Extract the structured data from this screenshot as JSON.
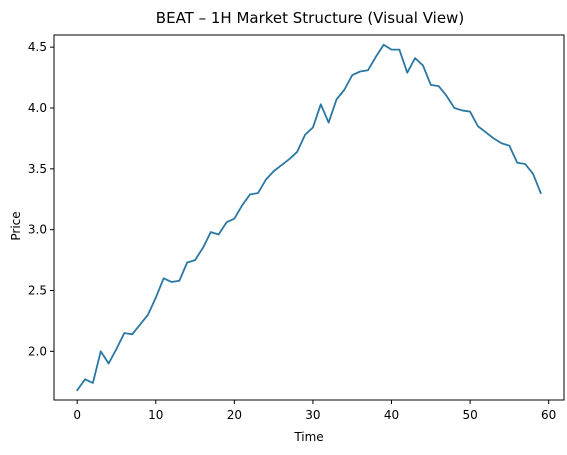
{
  "chart_data": {
    "type": "line",
    "title": "BEAT – 1H Market Structure (Visual View)",
    "xlabel": "Time",
    "ylabel": "Price",
    "xlim": [
      -2.95,
      61.95
    ],
    "ylim": [
      1.6,
      4.6
    ],
    "xticks": [
      0,
      10,
      20,
      30,
      40,
      50,
      60
    ],
    "yticks": [
      2.0,
      2.5,
      3.0,
      3.5,
      4.0,
      4.5
    ],
    "grid": false,
    "legend": "none",
    "series_color": "#2a77a4",
    "x": [
      0,
      1,
      2,
      3,
      4,
      5,
      6,
      7,
      8,
      9,
      10,
      11,
      12,
      13,
      14,
      15,
      16,
      17,
      18,
      19,
      20,
      21,
      22,
      23,
      24,
      25,
      26,
      27,
      28,
      29,
      30,
      31,
      32,
      33,
      34,
      35,
      36,
      37,
      38,
      39,
      40,
      41,
      42,
      43,
      44,
      45,
      46,
      47,
      48,
      49,
      50,
      51,
      52,
      53,
      54,
      55,
      56,
      57,
      58,
      59
    ],
    "y": [
      1.68,
      1.77,
      1.74,
      2.0,
      1.9,
      2.02,
      2.15,
      2.14,
      2.22,
      2.3,
      2.44,
      2.6,
      2.57,
      2.58,
      2.73,
      2.75,
      2.85,
      2.98,
      2.96,
      3.06,
      3.09,
      3.2,
      3.29,
      3.3,
      3.41,
      3.48,
      3.53,
      3.58,
      3.64,
      3.78,
      3.84,
      4.03,
      3.88,
      4.07,
      4.15,
      4.27,
      4.3,
      4.31,
      4.42,
      4.52,
      4.48,
      4.48,
      4.29,
      4.41,
      4.35,
      4.19,
      4.18,
      4.1,
      4.0,
      3.98,
      3.97,
      3.85,
      3.8,
      3.75,
      3.71,
      3.69,
      3.55,
      3.54,
      3.46,
      3.3
    ]
  }
}
